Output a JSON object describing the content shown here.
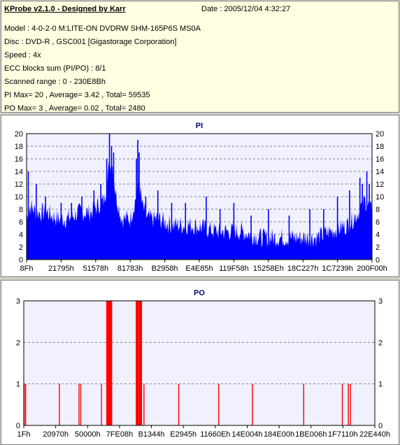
{
  "header": {
    "title": "KProbe v2.1.0 - Designed by Karr",
    "date": "Date : 2005/12/04 4:32:27",
    "lines": [
      "Model : 4-0-2-0 M:LITE-ON DVDRW SHM-165P6S MS0A",
      "Disc : DVD-R , GSC001 [Gigastorage Corporation]",
      "Speed : 4x",
      "ECC blocks sum (PI/PO) : 8/1",
      "Scanned range : 0 - 230E8Bh",
      "PI Max= 20 , Average= 3.42 , Total= 59535",
      "PO Max= 3 , Average= 0.02 , Total= 2480"
    ]
  },
  "colors": {
    "pi_fill": "#0000ff",
    "po_bar": "#ff0000",
    "plot_bg": "#f0f0ff",
    "title": "#00007f"
  },
  "chart_data": [
    {
      "type": "bar",
      "title": "PI",
      "ylim": [
        0,
        20
      ],
      "yticks": [
        0,
        2,
        4,
        6,
        8,
        10,
        12,
        14,
        16,
        18,
        20
      ],
      "xlim": [
        143,
        2289291
      ],
      "xtick_labels": [
        "8Fh",
        "21795h",
        "51578h",
        "81783h",
        "B2958h",
        "E4E85h",
        "119F58h",
        "15258Eh",
        "18C227h",
        "1C7239h",
        "200F00h"
      ],
      "grid": "horizontal-dashed",
      "series": [
        {
          "name": "PI",
          "profile": [
            [
              0.0,
              6
            ],
            [
              0.01,
              8
            ],
            [
              0.03,
              7
            ],
            [
              0.06,
              7
            ],
            [
              0.09,
              6
            ],
            [
              0.12,
              6
            ],
            [
              0.15,
              7
            ],
            [
              0.185,
              7
            ],
            [
              0.205,
              8
            ],
            [
              0.225,
              9
            ],
            [
              0.238,
              14
            ],
            [
              0.248,
              15
            ],
            [
              0.258,
              10
            ],
            [
              0.275,
              6
            ],
            [
              0.3,
              6
            ],
            [
              0.315,
              9
            ],
            [
              0.325,
              12
            ],
            [
              0.335,
              8
            ],
            [
              0.35,
              6
            ],
            [
              0.38,
              6
            ],
            [
              0.42,
              5
            ],
            [
              0.48,
              5
            ],
            [
              0.55,
              4
            ],
            [
              0.62,
              4
            ],
            [
              0.68,
              3
            ],
            [
              0.74,
              3
            ],
            [
              0.8,
              3
            ],
            [
              0.84,
              3
            ],
            [
              0.88,
              4
            ],
            [
              0.93,
              5
            ],
            [
              0.96,
              7
            ],
            [
              0.98,
              9
            ],
            [
              1.0,
              7
            ]
          ],
          "spikes": [
            [
              0.005,
              14
            ],
            [
              0.028,
              12
            ],
            [
              0.055,
              10
            ],
            [
              0.1,
              9
            ],
            [
              0.13,
              9
            ],
            [
              0.16,
              10
            ],
            [
              0.195,
              11
            ],
            [
              0.215,
              12
            ],
            [
              0.232,
              16
            ],
            [
              0.24,
              20
            ],
            [
              0.246,
              18
            ],
            [
              0.252,
              17
            ],
            [
              0.318,
              16
            ],
            [
              0.322,
              19
            ],
            [
              0.326,
              17
            ],
            [
              0.345,
              10
            ],
            [
              0.38,
              11
            ],
            [
              0.42,
              9
            ],
            [
              0.46,
              9
            ],
            [
              0.52,
              10
            ],
            [
              0.56,
              8
            ],
            [
              0.6,
              9
            ],
            [
              0.65,
              7
            ],
            [
              0.7,
              8
            ],
            [
              0.76,
              7
            ],
            [
              0.82,
              8
            ],
            [
              0.86,
              8
            ],
            [
              0.9,
              10
            ],
            [
              0.935,
              11
            ],
            [
              0.965,
              13
            ],
            [
              0.972,
              12
            ],
            [
              0.985,
              14
            ],
            [
              0.992,
              12
            ]
          ]
        }
      ]
    },
    {
      "type": "bar",
      "title": "PO",
      "ylim": [
        0,
        3
      ],
      "yticks": [
        0,
        1,
        2,
        3
      ],
      "xlim": [
        31,
        2287680
      ],
      "xtick_labels": [
        "1Fh",
        "20970h",
        "50000h",
        "7FE08h",
        "B1344h",
        "E2945h",
        "11660Eh",
        "14E004h",
        "184E00h",
        "1BE006h",
        "1F7110h",
        "22E440h"
      ],
      "grid": "horizontal-dashed",
      "series": [
        {
          "name": "PO",
          "bars": [
            [
              0.002,
              1
            ],
            [
              0.006,
              1
            ],
            [
              0.102,
              1
            ],
            [
              0.158,
              1
            ],
            [
              0.163,
              1
            ],
            [
              0.222,
              1
            ],
            [
              0.237,
              3
            ],
            [
              0.241,
              3
            ],
            [
              0.245,
              3
            ],
            [
              0.249,
              3
            ],
            [
              0.321,
              3
            ],
            [
              0.325,
              3
            ],
            [
              0.33,
              3
            ],
            [
              0.334,
              3
            ],
            [
              0.343,
              1
            ],
            [
              0.442,
              1
            ],
            [
              0.556,
              1
            ],
            [
              0.652,
              1
            ],
            [
              0.798,
              1
            ],
            [
              0.908,
              1
            ],
            [
              0.925,
              1
            ],
            [
              0.931,
              1
            ]
          ]
        }
      ]
    }
  ]
}
